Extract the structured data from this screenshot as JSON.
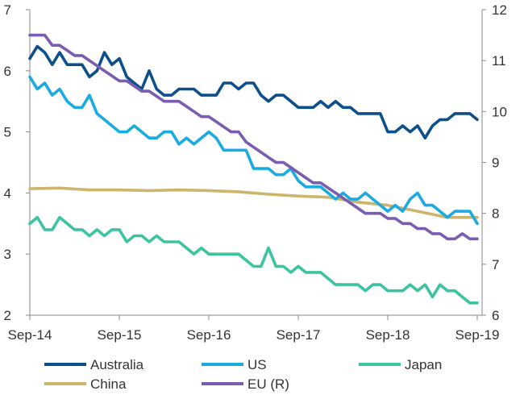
{
  "chart_data": {
    "type": "line",
    "title": "",
    "xlabel": "",
    "ylabel": "",
    "x_ticks": [
      "Sep-14",
      "Sep-15",
      "Sep-16",
      "Sep-17",
      "Sep-18",
      "Sep-19"
    ],
    "x_range": [
      0,
      60
    ],
    "left_axis": {
      "ylim": [
        2,
        7
      ],
      "ticks": [
        "2",
        "3",
        "4",
        "5",
        "6",
        "7"
      ]
    },
    "right_axis": {
      "ylim": [
        6,
        12
      ],
      "ticks": [
        "6",
        "7",
        "8",
        "9",
        "10",
        "11",
        "12"
      ]
    },
    "grid": false,
    "legend_position": "bottom",
    "series": [
      {
        "name": "Australia",
        "axis": "left",
        "color": "#0D4F8B",
        "x": [
          0,
          1,
          2,
          3,
          4,
          5,
          6,
          7,
          8,
          9,
          10,
          11,
          12,
          13,
          14,
          15,
          16,
          17,
          18,
          19,
          20,
          21,
          22,
          23,
          24,
          25,
          26,
          27,
          28,
          29,
          30,
          31,
          32,
          33,
          34,
          35,
          36,
          37,
          38,
          39,
          40,
          41,
          42,
          43,
          44,
          45,
          46,
          47,
          48,
          49,
          50,
          51,
          52,
          53,
          54,
          55,
          56,
          57,
          58,
          59,
          60
        ],
        "values": [
          6.2,
          6.4,
          6.3,
          6.1,
          6.3,
          6.1,
          6.1,
          6.1,
          5.9,
          6.0,
          6.3,
          6.1,
          6.2,
          5.9,
          5.8,
          5.7,
          6.0,
          5.7,
          5.6,
          5.6,
          5.7,
          5.7,
          5.7,
          5.6,
          5.6,
          5.6,
          5.8,
          5.8,
          5.7,
          5.8,
          5.8,
          5.6,
          5.5,
          5.6,
          5.6,
          5.5,
          5.4,
          5.4,
          5.4,
          5.5,
          5.4,
          5.5,
          5.4,
          5.4,
          5.3,
          5.3,
          5.3,
          5.3,
          5.0,
          5.0,
          5.1,
          5.0,
          5.1,
          4.9,
          5.1,
          5.2,
          5.2,
          5.3,
          5.3,
          5.3,
          5.2
        ]
      },
      {
        "name": "US",
        "axis": "left",
        "color": "#1AABE2",
        "x": [
          0,
          1,
          2,
          3,
          4,
          5,
          6,
          7,
          8,
          9,
          10,
          11,
          12,
          13,
          14,
          15,
          16,
          17,
          18,
          19,
          20,
          21,
          22,
          23,
          24,
          25,
          26,
          27,
          28,
          29,
          30,
          31,
          32,
          33,
          34,
          35,
          36,
          37,
          38,
          39,
          40,
          41,
          42,
          43,
          44,
          45,
          46,
          47,
          48,
          49,
          50,
          51,
          52,
          53,
          54,
          55,
          56,
          57,
          58,
          59,
          60
        ],
        "values": [
          5.9,
          5.7,
          5.8,
          5.6,
          5.7,
          5.5,
          5.4,
          5.4,
          5.6,
          5.3,
          5.2,
          5.1,
          5.0,
          5.0,
          5.1,
          5.0,
          4.9,
          4.9,
          5.0,
          5.0,
          4.8,
          4.9,
          4.8,
          4.9,
          5.0,
          4.9,
          4.7,
          4.7,
          4.7,
          4.7,
          4.4,
          4.4,
          4.4,
          4.3,
          4.3,
          4.4,
          4.2,
          4.1,
          4.1,
          4.1,
          4.0,
          3.9,
          4.0,
          3.9,
          3.9,
          4.0,
          3.9,
          3.8,
          3.7,
          3.8,
          3.7,
          3.9,
          4.0,
          3.8,
          3.8,
          3.7,
          3.6,
          3.7,
          3.7,
          3.7,
          3.5
        ]
      },
      {
        "name": "Japan",
        "axis": "left",
        "color": "#3CC4A0",
        "x": [
          0,
          1,
          2,
          3,
          4,
          5,
          6,
          7,
          8,
          9,
          10,
          11,
          12,
          13,
          14,
          15,
          16,
          17,
          18,
          19,
          20,
          21,
          22,
          23,
          24,
          25,
          26,
          27,
          28,
          29,
          30,
          31,
          32,
          33,
          34,
          35,
          36,
          37,
          38,
          39,
          40,
          41,
          42,
          43,
          44,
          45,
          46,
          47,
          48,
          49,
          50,
          51,
          52,
          53,
          54,
          55,
          56,
          57,
          58,
          59,
          60
        ],
        "values": [
          3.5,
          3.6,
          3.4,
          3.4,
          3.6,
          3.5,
          3.4,
          3.4,
          3.3,
          3.4,
          3.3,
          3.4,
          3.4,
          3.2,
          3.3,
          3.3,
          3.2,
          3.3,
          3.2,
          3.2,
          3.2,
          3.1,
          3.0,
          3.1,
          3.0,
          3.0,
          3.0,
          3.0,
          3.0,
          2.9,
          2.8,
          2.8,
          3.1,
          2.8,
          2.8,
          2.7,
          2.8,
          2.7,
          2.7,
          2.7,
          2.6,
          2.5,
          2.5,
          2.5,
          2.5,
          2.4,
          2.5,
          2.5,
          2.4,
          2.4,
          2.4,
          2.5,
          2.4,
          2.5,
          2.3,
          2.5,
          2.4,
          2.4,
          2.3,
          2.2,
          2.2
        ]
      },
      {
        "name": "China",
        "axis": "left",
        "color": "#CDB56E",
        "x": [
          0,
          4,
          8,
          12,
          16,
          20,
          24,
          28,
          32,
          36,
          40,
          44,
          48,
          52,
          56,
          60
        ],
        "values": [
          4.07,
          4.08,
          4.05,
          4.05,
          4.04,
          4.05,
          4.04,
          4.02,
          3.98,
          3.95,
          3.93,
          3.85,
          3.8,
          3.7,
          3.6,
          3.6
        ]
      },
      {
        "name": "EU (R)",
        "axis": "right",
        "color": "#7A5CB0",
        "x": [
          0,
          1,
          2,
          3,
          4,
          5,
          6,
          7,
          8,
          9,
          10,
          11,
          12,
          13,
          14,
          15,
          16,
          17,
          18,
          19,
          20,
          21,
          22,
          23,
          24,
          25,
          26,
          27,
          28,
          29,
          30,
          31,
          32,
          33,
          34,
          35,
          36,
          37,
          38,
          39,
          40,
          41,
          42,
          43,
          44,
          45,
          46,
          47,
          48,
          49,
          50,
          51,
          52,
          53,
          54,
          55,
          56,
          57,
          58,
          59,
          60
        ],
        "values": [
          11.5,
          11.5,
          11.5,
          11.3,
          11.3,
          11.2,
          11.1,
          11.1,
          11.0,
          10.9,
          10.8,
          10.7,
          10.6,
          10.6,
          10.5,
          10.4,
          10.4,
          10.3,
          10.2,
          10.2,
          10.2,
          10.1,
          10.0,
          9.9,
          9.9,
          9.8,
          9.7,
          9.6,
          9.6,
          9.4,
          9.3,
          9.2,
          9.1,
          9.0,
          9.0,
          8.9,
          8.8,
          8.7,
          8.6,
          8.6,
          8.5,
          8.4,
          8.3,
          8.2,
          8.1,
          8.0,
          8.0,
          8.0,
          7.9,
          7.9,
          7.8,
          7.8,
          7.7,
          7.7,
          7.6,
          7.6,
          7.5,
          7.5,
          7.6,
          7.5,
          7.5
        ]
      }
    ]
  }
}
